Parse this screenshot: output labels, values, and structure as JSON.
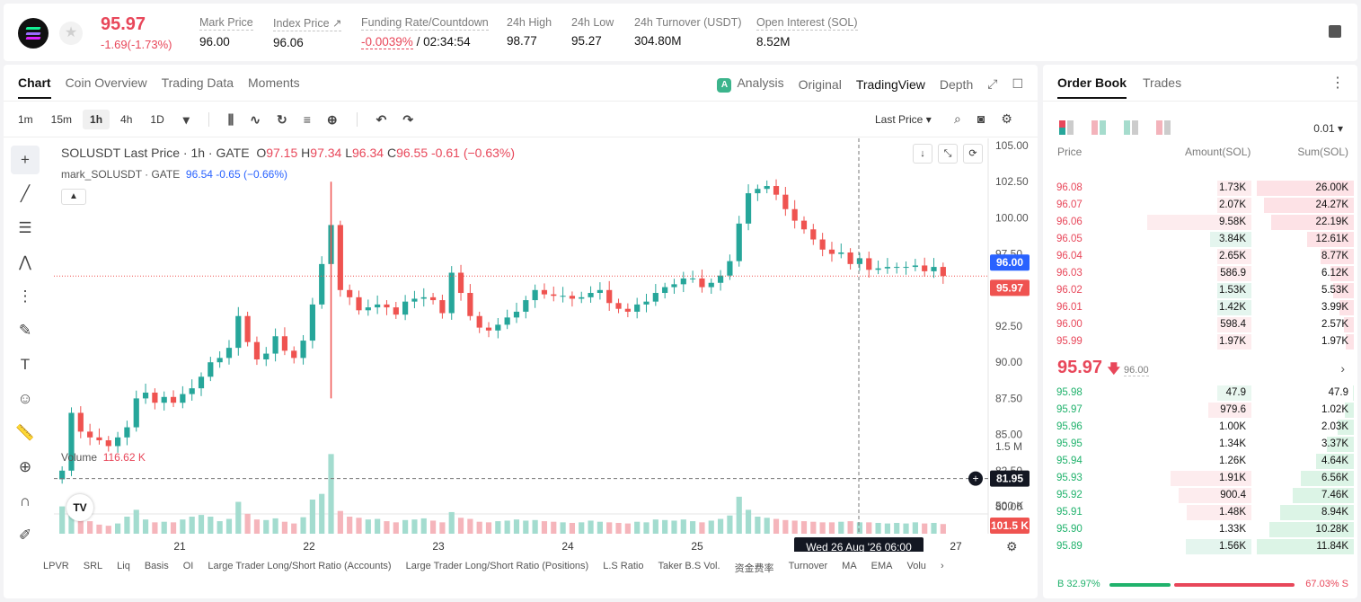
{
  "header": {
    "price": "95.97",
    "change": "-1.69(-1.73%)",
    "stats": [
      {
        "label": "Mark Price",
        "value": "96.00"
      },
      {
        "label": "Index Price ↗",
        "value": "96.06"
      },
      {
        "label": "Funding Rate/Countdown",
        "value_red": "-0.0039%",
        "value": "/ 02:34:54"
      },
      {
        "label": "24h High",
        "value": "98.77"
      },
      {
        "label": "24h Low",
        "value": "95.27"
      },
      {
        "label": "24h Turnover (USDT)",
        "value": "304.80M"
      },
      {
        "label": "Open Interest (SOL)",
        "value": "8.52M"
      }
    ]
  },
  "chart_tabs": [
    "Chart",
    "Coin Overview",
    "Trading Data",
    "Moments"
  ],
  "view_tabs": [
    "Analysis",
    "Original",
    "TradingView",
    "Depth"
  ],
  "timeframes": [
    "1m",
    "15m",
    "1h",
    "4h",
    "1D"
  ],
  "last_price_select": "Last Price",
  "legend": {
    "symbol": "SOLUSDT Last Price · 1h · GATE",
    "o_label": "O",
    "o": "97.15",
    "h_label": "H",
    "h": "97.34",
    "l_label": "L",
    "l": "96.34",
    "c_label": "C",
    "c": "96.55",
    "chg": "-0.61 (−0.63%)",
    "mark_label": "mark_SOLUSDT · GATE",
    "mark_val": "96.54 -0.65 (−0.66%)"
  },
  "volume_legend": {
    "label": "Volume",
    "value": "116.62 K"
  },
  "indicators": [
    "LPVR",
    "SRL",
    "Liq",
    "Basis",
    "OI",
    "Large Trader Long/Short Ratio (Accounts)",
    "Large Trader Long/Short Ratio (Positions)",
    "L.S Ratio",
    "Taker B.S Vol.",
    "资金费率",
    "Turnover",
    "MA",
    "EMA",
    "Volu"
  ],
  "chart_data": {
    "type": "candlestick",
    "price_axis": [
      "105.00",
      "102.50",
      "100.00",
      "97.50",
      "95.00",
      "92.50",
      "90.00",
      "87.50",
      "85.00",
      "82.50",
      "80.00"
    ],
    "ylim": [
      80,
      105
    ],
    "volume_axis": [
      "1.5 M",
      "1 M",
      "500 K"
    ],
    "x_ticks": [
      "21",
      "22",
      "23",
      "24",
      "25",
      "27"
    ],
    "price_tags": {
      "mark": "96.00",
      "last": "95.97",
      "cursor": "81.95",
      "volume": "101.5 K"
    },
    "crosshair_label": "Wed 26 Aug '26   06:00",
    "colors": {
      "up": "#26a69a",
      "down": "#ef5350",
      "mark_tag": "#2962ff",
      "last_tag": "#ef5350"
    },
    "series_close": [
      82.5,
      86.5,
      85.2,
      84.8,
      84.6,
      84.2,
      84.8,
      85.5,
      87.5,
      87.9,
      87.2,
      87.6,
      87.2,
      87.8,
      88.2,
      89.0,
      90.0,
      90.3,
      91.0,
      93.2,
      91.4,
      90.2,
      90.6,
      91.8,
      90.8,
      90.3,
      91.5,
      94.0,
      96.8,
      99.5,
      95.0,
      94.5,
      93.6,
      93.8,
      94.0,
      93.8,
      93.3,
      94.2,
      94.4,
      94.5,
      94.3,
      93.4,
      96.2,
      94.8,
      93.2,
      92.4,
      92.2,
      92.6,
      93.1,
      93.5,
      94.3,
      95.0,
      94.7,
      94.6,
      94.6,
      94.4,
      94.5,
      94.8,
      95.0,
      94.1,
      93.7,
      93.5,
      94.0,
      94.2,
      94.8,
      95.2,
      95.4,
      95.8,
      95.8,
      95.2,
      95.5,
      96.0,
      97.0,
      99.6,
      101.7,
      102.0,
      102.2,
      101.6,
      100.6,
      99.8,
      99.2,
      98.5,
      97.8,
      97.5,
      97.6,
      96.8,
      97.2,
      96.4,
      96.5,
      96.6,
      96.6,
      96.6,
      96.7,
      96.3,
      96.6,
      95.97
    ],
    "volume": [
      480,
      350,
      250,
      220,
      160,
      140,
      180,
      300,
      420,
      250,
      200,
      210,
      200,
      250,
      300,
      330,
      300,
      220,
      260,
      560,
      350,
      250,
      240,
      270,
      210,
      180,
      290,
      600,
      700,
      1400,
      400,
      300,
      280,
      250,
      260,
      220,
      200,
      240,
      250,
      270,
      230,
      200,
      380,
      280,
      260,
      210,
      200,
      220,
      230,
      250,
      230,
      240,
      220,
      210,
      200,
      190,
      200,
      230,
      210,
      200,
      190,
      180,
      210,
      200,
      250,
      240,
      230,
      250,
      220,
      200,
      230,
      260,
      320,
      650,
      420,
      300,
      280,
      260,
      240,
      230,
      220,
      210,
      200,
      200,
      210,
      220,
      200,
      200,
      190,
      180,
      190,
      180,
      200,
      180,
      190,
      170
    ]
  },
  "order_book": {
    "tabs": [
      "Order Book",
      "Trades"
    ],
    "tick": "0.01",
    "headers": [
      "Price",
      "Amount(SOL)",
      "Sum(SOL)"
    ],
    "asks": [
      {
        "price": "96.08",
        "amount": "1.73K",
        "sum": "26.00K",
        "af": 0.18,
        "sf": 1.0
      },
      {
        "price": "96.07",
        "amount": "2.07K",
        "sum": "24.27K",
        "af": 0.21,
        "sf": 0.93
      },
      {
        "price": "96.06",
        "amount": "9.58K",
        "sum": "22.19K",
        "af": 1.0,
        "sf": 0.85
      },
      {
        "price": "96.05",
        "amount": "3.84K",
        "sum": "12.61K",
        "af": 0.4,
        "sf": 0.48,
        "buyhl": true
      },
      {
        "price": "96.04",
        "amount": "2.65K",
        "sum": "8.77K",
        "af": 0.28,
        "sf": 0.34
      },
      {
        "price": "96.03",
        "amount": "586.9",
        "sum": "6.12K",
        "af": 0.06,
        "sf": 0.24
      },
      {
        "price": "96.02",
        "amount": "1.53K",
        "sum": "5.53K",
        "af": 0.16,
        "sf": 0.21,
        "buyhl": true
      },
      {
        "price": "96.01",
        "amount": "1.42K",
        "sum": "3.99K",
        "af": 0.15,
        "sf": 0.15,
        "buyhl": true
      },
      {
        "price": "96.00",
        "amount": "598.4",
        "sum": "2.57K",
        "af": 0.06,
        "sf": 0.1
      },
      {
        "price": "95.99",
        "amount": "1.97K",
        "sum": "1.97K",
        "af": 0.21,
        "sf": 0.08
      }
    ],
    "mid_price": "95.97",
    "mid_arrow": "🡇",
    "mid_mark": "96.00",
    "bids": [
      {
        "price": "95.98",
        "amount": "47.9",
        "sum": "47.9",
        "af": 0.02,
        "sf": 0.01
      },
      {
        "price": "95.97",
        "amount": "979.6",
        "sum": "1.02K",
        "af": 0.41,
        "sf": 0.09,
        "sellhl": true
      },
      {
        "price": "95.96",
        "amount": "1.00K",
        "sum": "2.03K",
        "af": 0.0,
        "sf": 0.17
      },
      {
        "price": "95.95",
        "amount": "1.34K",
        "sum": "3.37K",
        "af": 0.0,
        "sf": 0.28
      },
      {
        "price": "95.94",
        "amount": "1.26K",
        "sum": "4.64K",
        "af": 0.0,
        "sf": 0.39
      },
      {
        "price": "95.93",
        "amount": "1.91K",
        "sum": "6.56K",
        "af": 0.78,
        "sf": 0.55,
        "sellhl": true
      },
      {
        "price": "95.92",
        "amount": "900.4",
        "sum": "7.46K",
        "af": 0.7,
        "sf": 0.63,
        "sellhl": true
      },
      {
        "price": "95.91",
        "amount": "1.48K",
        "sum": "8.94K",
        "af": 0.62,
        "sf": 0.76,
        "sellhl": true
      },
      {
        "price": "95.90",
        "amount": "1.33K",
        "sum": "10.28K",
        "af": 0.0,
        "sf": 0.87
      },
      {
        "price": "95.89",
        "amount": "1.56K",
        "sum": "11.84K",
        "af": 0.63,
        "sf": 1.0,
        "buyhl": true
      }
    ],
    "buy_ratio": "B  32.97%",
    "sell_ratio": "67.03%  S"
  }
}
